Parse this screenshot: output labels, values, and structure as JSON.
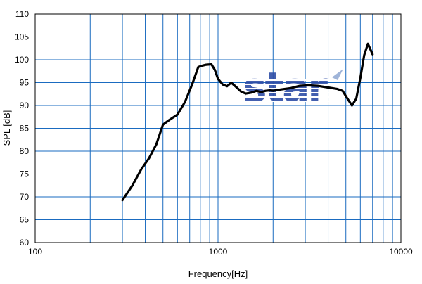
{
  "chart_data": {
    "type": "line",
    "xscale": "log",
    "xlim": [
      100,
      10000
    ],
    "ylim": [
      60,
      110
    ],
    "xlabel": "Frequency[Hz]",
    "ylabel": "SPL [dB]",
    "xticks": [
      100,
      1000,
      10000
    ],
    "xtick_labels": [
      "100",
      "1000",
      "10000"
    ],
    "yticks": [
      60,
      65,
      70,
      75,
      80,
      85,
      90,
      95,
      100,
      105,
      110
    ],
    "ytick_labels": [
      "60",
      "65",
      "70",
      "75",
      "80",
      "85",
      "90",
      "95",
      "100",
      "105",
      "110"
    ],
    "grid": true,
    "grid_color": "#1a6bc0",
    "line_color": "#000000",
    "watermark": "star",
    "series": [
      {
        "x": [
          300,
          340,
          380,
          420,
          460,
          500,
          540,
          600,
          660,
          720,
          780,
          820,
          860,
          920,
          960,
          1000,
          1060,
          1120,
          1180,
          1260,
          1340,
          1420,
          1520,
          1620,
          1720,
          1820,
          1920,
          2000,
          2200,
          2500,
          2800,
          3100,
          3500,
          3900,
          4200,
          4500,
          4800,
          5100,
          5400,
          5700,
          6000,
          6300,
          6600,
          7000
        ],
        "y": [
          69.3,
          72.5,
          76.0,
          78.5,
          81.5,
          85.8,
          86.8,
          88.0,
          90.8,
          94.5,
          98.4,
          98.7,
          98.9,
          99.0,
          97.8,
          95.8,
          94.6,
          94.2,
          95.0,
          94.0,
          93.0,
          92.6,
          92.8,
          93.2,
          92.9,
          93.2,
          93.3,
          93.2,
          93.5,
          93.8,
          94.3,
          94.4,
          94.3,
          94.0,
          93.8,
          93.6,
          93.2,
          91.5,
          90.0,
          91.5,
          96.0,
          101.0,
          103.5,
          101.2
        ]
      }
    ]
  }
}
